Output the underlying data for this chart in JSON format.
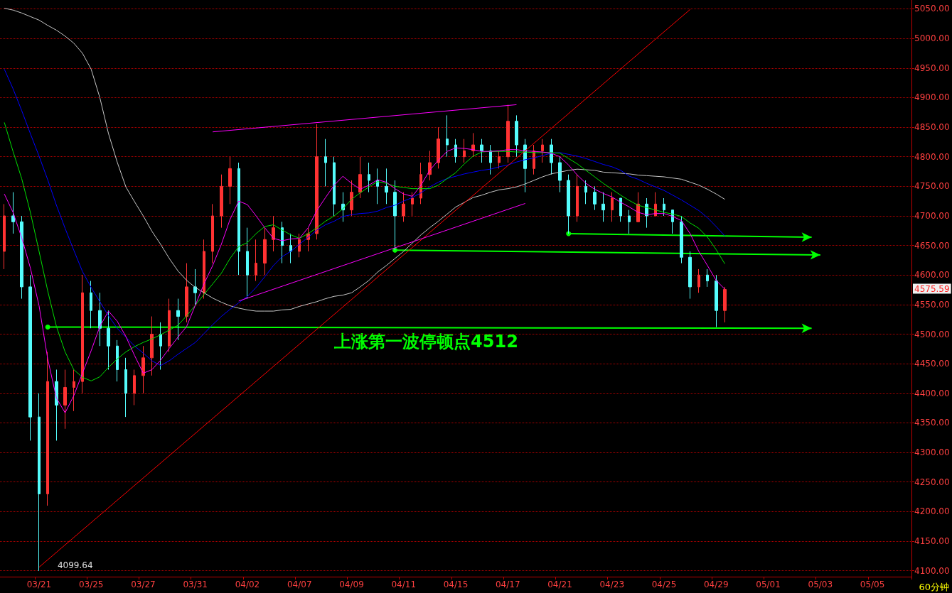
{
  "chart_data": {
    "type": "candlestick",
    "categories": [
      null,
      null,
      null,
      null,
      "03/21",
      null,
      null,
      null,
      null,
      null,
      "03/25",
      null,
      null,
      null,
      null,
      null,
      "03/27",
      null,
      null,
      null,
      null,
      null,
      "03/31",
      null,
      null,
      null,
      null,
      null,
      "04/02",
      null,
      null,
      null,
      null,
      null,
      "04/07",
      null,
      null,
      null,
      null,
      null,
      "04/09",
      null,
      null,
      null,
      null,
      null,
      "04/11",
      null,
      null,
      null,
      null,
      null,
      "04/15",
      null,
      null,
      null,
      null,
      null,
      "04/17",
      null,
      null,
      null,
      null,
      null,
      "04/21",
      null,
      null,
      null,
      null,
      null,
      "04/23",
      null,
      null,
      null,
      null,
      null,
      "04/25",
      null,
      null,
      null,
      null,
      null,
      "04/29",
      null,
      null,
      null,
      null,
      null,
      "05/01",
      null,
      null,
      null,
      null,
      null,
      "05/03",
      null,
      null,
      null,
      null,
      null,
      "05/05",
      null,
      null,
      null,
      null
    ],
    "ohlc": [
      [
        4640,
        4720,
        4610,
        4700
      ],
      [
        4700,
        4740,
        4670,
        4690
      ],
      [
        4690,
        4700,
        4560,
        4580
      ],
      [
        4580,
        4600,
        4320,
        4360
      ],
      [
        4360,
        4400,
        4099.64,
        4230
      ],
      [
        4230,
        4470,
        4210,
        4420
      ],
      [
        4420,
        4440,
        4320,
        4380
      ],
      [
        4380,
        4440,
        4340,
        4410
      ],
      [
        4410,
        4440,
        4370,
        4420
      ],
      [
        4420,
        4600,
        4400,
        4570
      ],
      [
        4570,
        4590,
        4510,
        4540
      ],
      [
        4540,
        4570,
        4480,
        4510
      ],
      [
        4510,
        4540,
        4440,
        4480
      ],
      [
        4480,
        4490,
        4420,
        4440
      ],
      [
        4440,
        4460,
        4360,
        4400
      ],
      [
        4400,
        4440,
        4380,
        4430
      ],
      [
        4430,
        4480,
        4400,
        4460
      ],
      [
        4460,
        4530,
        4430,
        4500
      ],
      [
        4500,
        4520,
        4440,
        4480
      ],
      [
        4480,
        4560,
        4470,
        4540
      ],
      [
        4540,
        4560,
        4490,
        4530
      ],
      [
        4530,
        4620,
        4520,
        4580
      ],
      [
        4580,
        4610,
        4550,
        4570
      ],
      [
        4570,
        4660,
        4560,
        4640
      ],
      [
        4640,
        4720,
        4620,
        4700
      ],
      [
        4700,
        4770,
        4680,
        4750
      ],
      [
        4750,
        4800,
        4720,
        4780
      ],
      [
        4780,
        4790,
        4600,
        4640
      ],
      [
        4640,
        4680,
        4560,
        4600
      ],
      [
        4600,
        4660,
        4590,
        4620
      ],
      [
        4620,
        4680,
        4600,
        4660
      ],
      [
        4660,
        4700,
        4640,
        4680
      ],
      [
        4680,
        4690,
        4620,
        4650
      ],
      [
        4650,
        4670,
        4620,
        4640
      ],
      [
        4640,
        4670,
        4630,
        4660
      ],
      [
        4660,
        4680,
        4640,
        4670
      ],
      [
        4670,
        4855,
        4660,
        4800
      ],
      [
        4800,
        4830,
        4750,
        4790
      ],
      [
        4790,
        4800,
        4700,
        4720
      ],
      [
        4720,
        4740,
        4690,
        4710
      ],
      [
        4710,
        4760,
        4700,
        4740
      ],
      [
        4740,
        4800,
        4730,
        4770
      ],
      [
        4770,
        4790,
        4740,
        4760
      ],
      [
        4760,
        4780,
        4720,
        4750
      ],
      [
        4750,
        4780,
        4720,
        4740
      ],
      [
        4740,
        4760,
        4642,
        4700
      ],
      [
        4700,
        4740,
        4690,
        4720
      ],
      [
        4720,
        4740,
        4700,
        4730
      ],
      [
        4730,
        4790,
        4720,
        4770
      ],
      [
        4770,
        4810,
        4760,
        4790
      ],
      [
        4790,
        4850,
        4780,
        4830
      ],
      [
        4830,
        4870,
        4800,
        4820
      ],
      [
        4820,
        4830,
        4790,
        4800
      ],
      [
        4800,
        4830,
        4790,
        4810
      ],
      [
        4810,
        4840,
        4800,
        4820
      ],
      [
        4820,
        4830,
        4790,
        4810
      ],
      [
        4810,
        4820,
        4770,
        4790
      ],
      [
        4790,
        4810,
        4780,
        4800
      ],
      [
        4800,
        4888,
        4790,
        4860
      ],
      [
        4860,
        4870,
        4800,
        4820
      ],
      [
        4820,
        4830,
        4740,
        4780
      ],
      [
        4780,
        4820,
        4770,
        4810
      ],
      [
        4810,
        4830,
        4790,
        4820
      ],
      [
        4820,
        4830,
        4770,
        4790
      ],
      [
        4790,
        4800,
        4740,
        4760
      ],
      [
        4760,
        4770,
        4670,
        4700
      ],
      [
        4700,
        4770,
        4690,
        4750
      ],
      [
        4750,
        4760,
        4720,
        4740
      ],
      [
        4740,
        4750,
        4710,
        4720
      ],
      [
        4720,
        4740,
        4690,
        4710
      ],
      [
        4710,
        4740,
        4690,
        4730
      ],
      [
        4730,
        4730,
        4690,
        4700
      ],
      [
        4700,
        4710,
        4670,
        4690
      ],
      [
        4690,
        4740,
        4690,
        4720
      ],
      [
        4720,
        4730,
        4680,
        4700
      ],
      [
        4700,
        4740,
        4700,
        4720
      ],
      [
        4720,
        4730,
        4700,
        4710
      ],
      [
        4710,
        4710,
        4670,
        4690
      ],
      [
        4690,
        4700,
        4620,
        4630
      ],
      [
        4630,
        4640,
        4560,
        4580
      ],
      [
        4580,
        4610,
        4570,
        4600
      ],
      [
        4600,
        4610,
        4580,
        4590
      ],
      [
        4590,
        4600,
        4512,
        4540
      ],
      [
        4540,
        4580,
        4520,
        4575.59
      ],
      null,
      null,
      null,
      null,
      null,
      null,
      null,
      null,
      null,
      null,
      null,
      null,
      null,
      null,
      null,
      null,
      null,
      null,
      null,
      null,
      null
    ],
    "series": [
      {
        "type": "line",
        "color": "#c8c8c8",
        "values": [
          5051,
          5048,
          5043,
          5037,
          5031,
          5022,
          5014,
          5004,
          4992,
          4975,
          4948,
          4900,
          4839,
          4791,
          4749,
          4724,
          4700,
          4674,
          4652,
          4628,
          4607,
          4591,
          4579,
          4570,
          4561,
          4554,
          4548,
          4544,
          4541,
          4539,
          4539,
          4539,
          4541,
          4542,
          4547,
          4551,
          4555,
          4560,
          4564,
          4566,
          4570,
          4580,
          4591,
          4605,
          4616,
          4628,
          4640,
          4654,
          4668,
          4680,
          4691,
          4703,
          4715,
          4723,
          4731,
          4735,
          4740,
          4744,
          4746,
          4749,
          4754,
          4760,
          4766,
          4771,
          4774,
          4777,
          4779,
          4778,
          4777,
          4774,
          4773,
          4772,
          4771,
          4769,
          4768,
          4767,
          4766,
          4764,
          4762,
          4757,
          4752,
          4745,
          4737,
          4728,
          null,
          null,
          null,
          null,
          null,
          null,
          null,
          null,
          null,
          null,
          null,
          null,
          null,
          null,
          null,
          null,
          null,
          null,
          null,
          null,
          null
        ]
      },
      {
        "type": "line",
        "color": "#0000ff",
        "values": [
          4948,
          4915,
          4878,
          4839,
          4801,
          4761,
          4718,
          4679,
          4642,
          4606,
          4579,
          4555,
          4531,
          4510,
          4495,
          4480,
          4468,
          4455,
          4447,
          4455,
          4466,
          4476,
          4486,
          4501,
          4516,
          4530,
          4542,
          4553,
          4564,
          4579,
          4597,
          4616,
          4631,
          4640,
          4652,
          4664,
          4676,
          4685,
          4691,
          4699,
          4702,
          4704,
          4705,
          4708,
          4714,
          4718,
          4725,
          4731,
          4739,
          4749,
          4757,
          4763,
          4767,
          4771,
          4774,
          4777,
          4779,
          4783,
          4786,
          4791,
          4795,
          4798,
          4802,
          4806,
          4807,
          4804,
          4801,
          4797,
          4792,
          4787,
          4783,
          4777,
          4767,
          4762,
          4755,
          4749,
          4743,
          4735,
          4727,
          4718,
          4709,
          4697,
          4682,
          4666,
          null,
          null,
          null,
          null,
          null,
          null,
          null,
          null,
          null,
          null,
          null,
          null,
          null,
          null,
          null,
          null,
          null,
          null,
          null,
          null,
          null
        ]
      },
      {
        "type": "line",
        "color": "#00e000",
        "values": [
          4858,
          4809,
          4763,
          4706,
          4640,
          4573,
          4513,
          4470,
          4440,
          4427,
          4421,
          4428,
          4444,
          4458,
          4470,
          4479,
          4486,
          4492,
          4499,
          4507,
          4515,
          4531,
          4549,
          4567,
          4585,
          4603,
          4628,
          4648,
          4655,
          4670,
          4682,
          4685,
          4676,
          4668,
          4662,
          4670,
          4680,
          4691,
          4700,
          4712,
          4728,
          4739,
          4749,
          4758,
          4755,
          4750,
          4748,
          4746,
          4746,
          4746,
          4752,
          4763,
          4773,
          4788,
          4801,
          4808,
          4809,
          4809,
          4809,
          4808,
          4808,
          4807,
          4807,
          4807,
          4806,
          4797,
          4788,
          4777,
          4766,
          4755,
          4745,
          4735,
          4726,
          4718,
          4714,
          4710,
          4706,
          4703,
          4699,
          4688,
          4679,
          4664,
          4643,
          4619,
          null,
          null,
          null,
          null,
          null,
          null,
          null,
          null,
          null,
          null,
          null,
          null,
          null,
          null,
          null,
          null,
          null,
          null,
          null,
          null,
          null
        ]
      },
      {
        "type": "line",
        "color": "#ff00ff",
        "values": [
          4737,
          4706,
          4663,
          4612,
          4548,
          4458,
          4392,
          4367,
          4396,
          4434,
          4472,
          4513,
          4539,
          4522,
          4496,
          4464,
          4434,
          4440,
          4456,
          4476,
          4495,
          4513,
          4549,
          4585,
          4616,
          4652,
          4694,
          4725,
          4719,
          4700,
          4680,
          4662,
          4658,
          4661,
          4662,
          4680,
          4709,
          4731,
          4752,
          4767,
          4755,
          4745,
          4752,
          4761,
          4757,
          4746,
          4737,
          4733,
          4752,
          4777,
          4794,
          4809,
          4815,
          4814,
          4812,
          4809,
          4809,
          4810,
          4812,
          4812,
          4810,
          4809,
          4808,
          4806,
          4800,
          4786,
          4769,
          4755,
          4745,
          4738,
          4732,
          4723,
          4715,
          4706,
          4702,
          4704,
          4704,
          4699,
          4692,
          4670,
          4640,
          4616,
          4591,
          4576,
          null,
          null,
          null,
          null,
          null,
          null,
          null,
          null,
          null,
          null,
          null,
          null,
          null,
          null,
          null,
          null,
          null,
          null,
          null,
          null,
          null
        ]
      },
      {
        "type": "line",
        "color": "#ff0000",
        "values": [
          null,
          null,
          null,
          null,
          4106,
          null,
          null,
          null,
          null,
          null,
          null,
          null,
          null,
          null,
          null,
          null,
          null,
          null,
          null,
          null,
          null,
          null,
          null,
          null,
          null,
          null,
          null,
          null,
          null,
          null,
          null,
          null,
          null,
          null,
          null,
          null,
          null,
          null,
          null,
          null,
          null,
          null,
          null,
          null,
          null,
          null,
          null,
          null,
          null,
          null,
          null,
          null,
          null,
          null,
          null,
          null,
          null,
          null,
          null,
          null,
          null,
          null,
          null,
          null,
          null,
          null,
          null,
          null,
          null,
          null,
          null,
          null,
          null,
          null,
          null,
          null,
          null,
          null,
          null,
          5049,
          null,
          null,
          null,
          null,
          null,
          null,
          null,
          null,
          null,
          null,
          null,
          null,
          null,
          null,
          null,
          null,
          null,
          null,
          null,
          null,
          null,
          null,
          null,
          null,
          null
        ]
      },
      {
        "type": "line",
        "color": "#ff00ff",
        "values": [
          null,
          null,
          null,
          null,
          null,
          null,
          null,
          null,
          null,
          null,
          null,
          null,
          null,
          null,
          null,
          null,
          null,
          null,
          null,
          null,
          null,
          null,
          null,
          null,
          4842,
          null,
          null,
          null,
          null,
          null,
          null,
          null,
          null,
          null,
          null,
          null,
          null,
          null,
          null,
          null,
          null,
          null,
          null,
          null,
          null,
          null,
          null,
          null,
          null,
          null,
          null,
          null,
          null,
          null,
          null,
          null,
          null,
          null,
          null,
          4888,
          null,
          null,
          null,
          null,
          null,
          null,
          null,
          null,
          null,
          null,
          null,
          null,
          null,
          null,
          null,
          null,
          null,
          null,
          null,
          null,
          null,
          null,
          null,
          null,
          null,
          null,
          null,
          null,
          null,
          null,
          null,
          null,
          null,
          null,
          null,
          null,
          null,
          null,
          null,
          null,
          null,
          null,
          null,
          null,
          null
        ]
      },
      {
        "type": "line",
        "color": "#ff00ff",
        "values": [
          null,
          null,
          null,
          null,
          null,
          null,
          null,
          null,
          null,
          null,
          null,
          null,
          null,
          null,
          null,
          null,
          null,
          null,
          null,
          null,
          null,
          null,
          null,
          null,
          null,
          null,
          null,
          4556,
          null,
          null,
          null,
          null,
          null,
          null,
          null,
          null,
          null,
          null,
          null,
          null,
          null,
          null,
          null,
          null,
          null,
          null,
          null,
          null,
          null,
          null,
          null,
          null,
          null,
          null,
          null,
          null,
          null,
          null,
          null,
          null,
          4721,
          null,
          null,
          null,
          null,
          null,
          null,
          null,
          null,
          null,
          null,
          null,
          null,
          null,
          null,
          null,
          null,
          null,
          null,
          null,
          null,
          null,
          null,
          null,
          null,
          null,
          null,
          null,
          null,
          null,
          null,
          null,
          null,
          null,
          null,
          null,
          null,
          null,
          null,
          null,
          null,
          null,
          null,
          null,
          null
        ]
      },
      {
        "type": "line",
        "color": "#00ff00",
        "marker": "circle",
        "values": [
          null,
          null,
          null,
          null,
          null,
          4512,
          null,
          null,
          null,
          null,
          null,
          null,
          null,
          null,
          null,
          null,
          null,
          null,
          null,
          null,
          null,
          null,
          null,
          null,
          null,
          null,
          null,
          null,
          null,
          null,
          null,
          null,
          null,
          null,
          null,
          null,
          null,
          null,
          null,
          null,
          null,
          null,
          null,
          null,
          null,
          null,
          null,
          null,
          null,
          null,
          null,
          null,
          null,
          null,
          null,
          null,
          null,
          null,
          null,
          null,
          null,
          null,
          null,
          null,
          null,
          null,
          null,
          null,
          null,
          null,
          null,
          null,
          null,
          null,
          null,
          null,
          null,
          null,
          null,
          null,
          null,
          null,
          null,
          null,
          null,
          null,
          null,
          null,
          null,
          null,
          null,
          null,
          null,
          4510,
          null,
          null,
          null,
          null,
          null,
          null,
          null,
          null,
          null,
          null,
          null
        ]
      },
      {
        "type": "line",
        "color": "#00ff00",
        "marker": "circle",
        "values": [
          null,
          null,
          null,
          null,
          null,
          null,
          null,
          null,
          null,
          null,
          null,
          null,
          null,
          null,
          null,
          null,
          null,
          null,
          null,
          null,
          null,
          null,
          null,
          null,
          null,
          null,
          null,
          null,
          null,
          null,
          null,
          null,
          null,
          null,
          null,
          null,
          null,
          null,
          null,
          null,
          null,
          null,
          null,
          null,
          null,
          4642,
          null,
          null,
          null,
          null,
          null,
          null,
          null,
          null,
          null,
          null,
          null,
          null,
          null,
          null,
          null,
          null,
          null,
          null,
          null,
          null,
          null,
          null,
          null,
          null,
          null,
          null,
          null,
          null,
          null,
          null,
          null,
          null,
          null,
          null,
          null,
          null,
          null,
          null,
          null,
          null,
          null,
          null,
          null,
          null,
          null,
          null,
          null,
          null,
          4634,
          null,
          null,
          null,
          null,
          null,
          null,
          null,
          null,
          null,
          null
        ]
      },
      {
        "type": "line",
        "color": "#00ff00",
        "marker": "circle",
        "values": [
          null,
          null,
          null,
          null,
          null,
          null,
          null,
          null,
          null,
          null,
          null,
          null,
          null,
          null,
          null,
          null,
          null,
          null,
          null,
          null,
          null,
          null,
          null,
          null,
          null,
          null,
          null,
          null,
          null,
          null,
          null,
          null,
          null,
          null,
          null,
          null,
          null,
          null,
          null,
          null,
          null,
          null,
          null,
          null,
          null,
          null,
          null,
          null,
          null,
          null,
          null,
          null,
          null,
          null,
          null,
          null,
          null,
          null,
          null,
          null,
          null,
          null,
          null,
          null,
          null,
          4670,
          null,
          null,
          null,
          null,
          null,
          null,
          null,
          null,
          null,
          null,
          null,
          null,
          null,
          null,
          null,
          null,
          null,
          null,
          null,
          null,
          null,
          null,
          null,
          null,
          null,
          null,
          null,
          4664,
          null,
          null,
          null,
          null,
          null,
          null,
          null,
          null,
          null,
          null,
          null
        ]
      }
    ],
    "ylim": [
      4090,
      5065
    ],
    "yticks": [
      {
        "value": 4100,
        "label": "4100.00"
      },
      {
        "value": 4150,
        "label": "4150.00"
      },
      {
        "value": 4200,
        "label": "4200.00"
      },
      {
        "value": 4250,
        "label": "4250.00"
      },
      {
        "value": 4300,
        "label": "4300.00"
      },
      {
        "value": 4350,
        "label": "4350.00"
      },
      {
        "value": 4400,
        "label": "4400.00"
      },
      {
        "value": 4450,
        "label": "4450.00"
      },
      {
        "value": 4500,
        "label": "4500.00"
      },
      {
        "value": 4550,
        "label": "4550.00"
      },
      {
        "value": 4600,
        "label": "4600.00"
      },
      {
        "value": 4650,
        "label": "4650.00"
      },
      {
        "value": 4700,
        "label": "4700.00"
      },
      {
        "value": 4750,
        "label": "4750.00"
      },
      {
        "value": 4800,
        "label": "4800.00"
      },
      {
        "value": 4850,
        "label": "4850.00"
      },
      {
        "value": 4900,
        "label": "4900.00"
      },
      {
        "value": 4950,
        "label": "4950.00"
      },
      {
        "value": 5000,
        "label": "5000.00"
      },
      {
        "value": 5050,
        "label": "5050.00"
      }
    ],
    "grid": "y",
    "annotations": [
      {
        "text": "上涨第一波停顿点4512",
        "y": 4512
      },
      "4099.64",
      "4575.59",
      "60分钟"
    ]
  }
}
